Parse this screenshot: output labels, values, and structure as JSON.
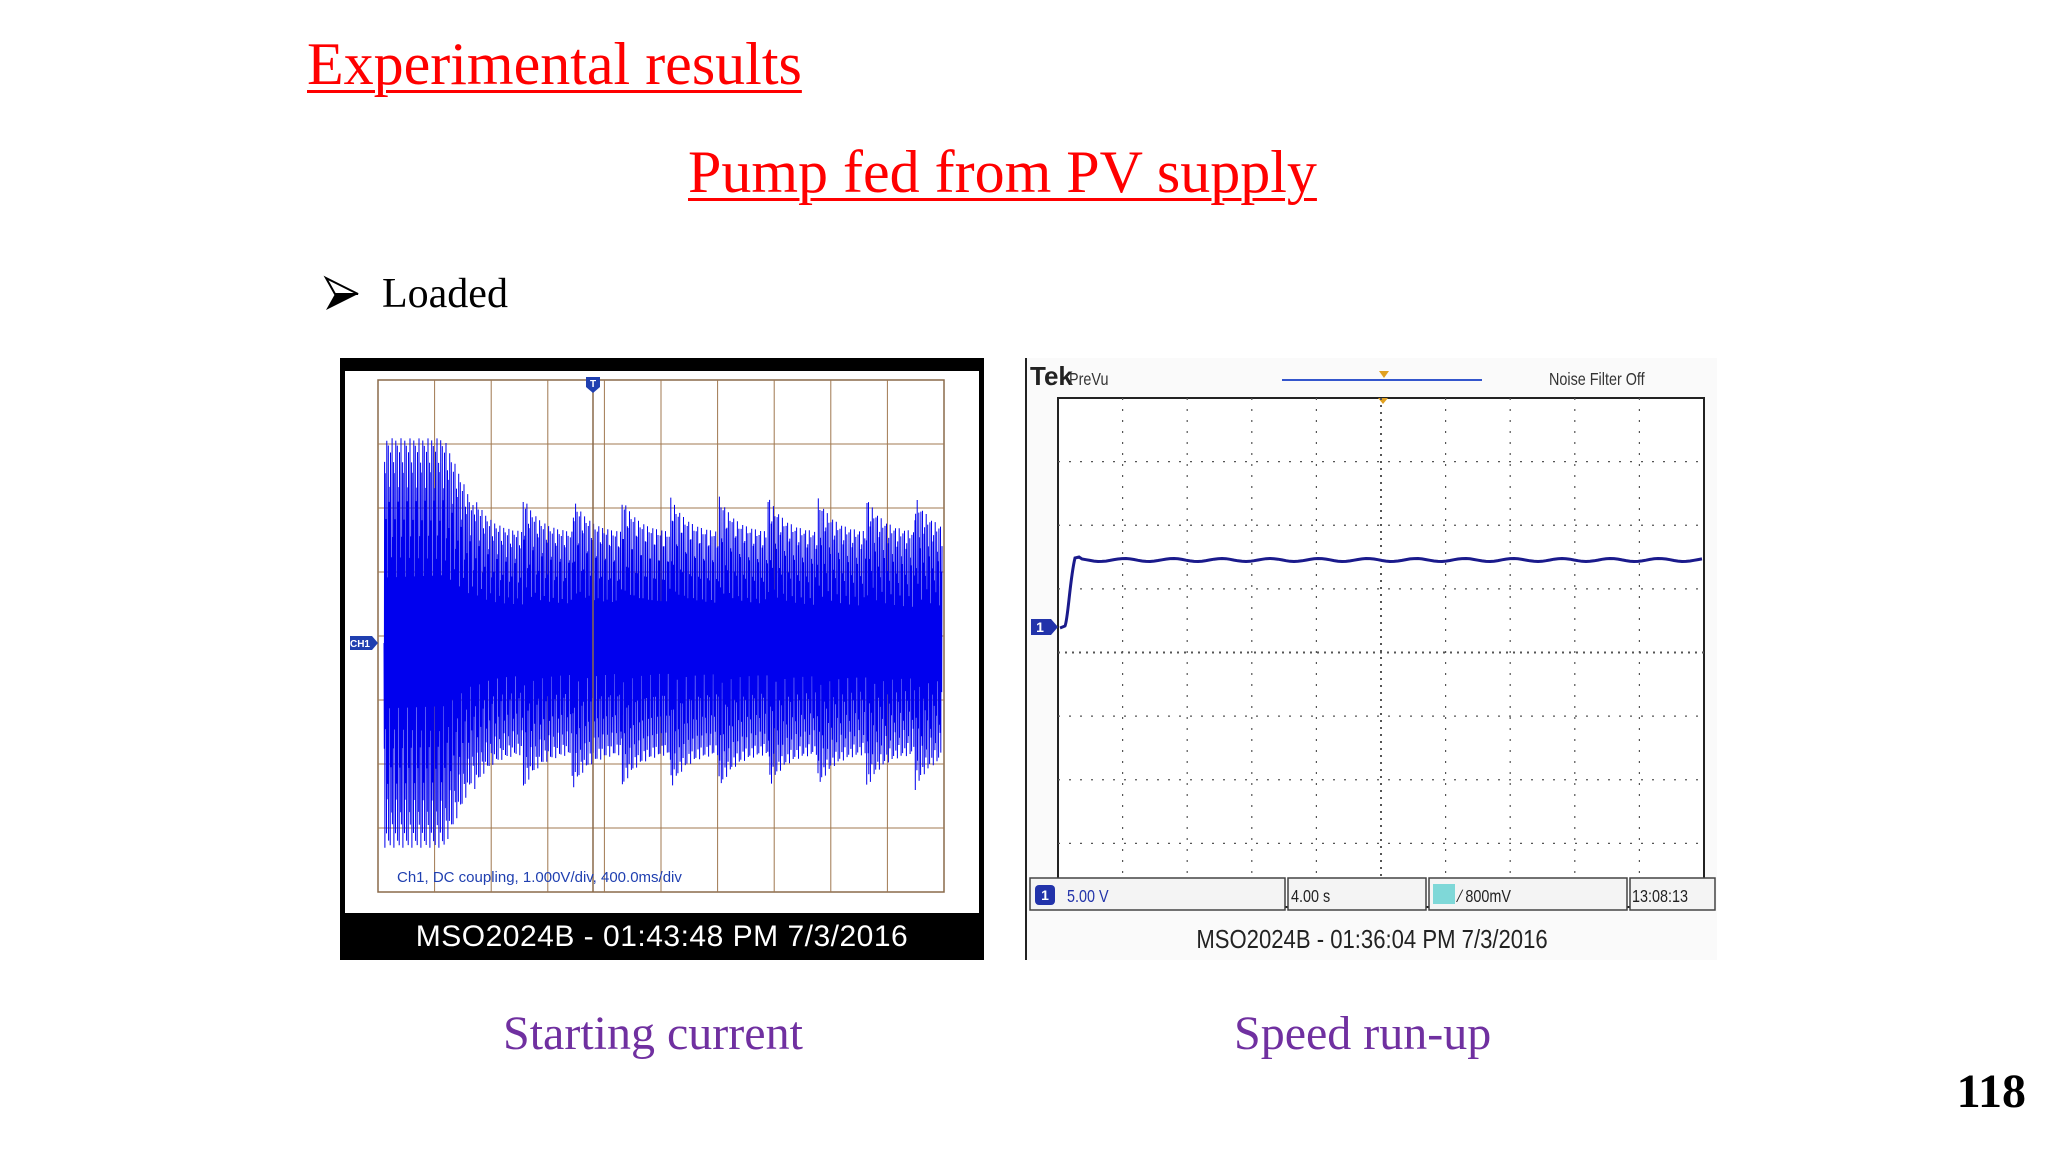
{
  "slide": {
    "title": "Experimental results",
    "subtitle": "Pump fed from PV supply",
    "bullet": "Loaded",
    "page_number": "118"
  },
  "colors": {
    "title": "#ff0000",
    "caption": "#7030a0",
    "trace_left": "#0000ee",
    "trace_right": "#1a1a8c"
  },
  "scope_left": {
    "channel_marker": "CH1",
    "trigger_marker": "T",
    "settings": "Ch1, DC coupling, 1.000V/div, 400.0ms/div",
    "footer": "MSO2024B - 01:43:48 PM   7/3/2016",
    "caption": "Starting current"
  },
  "scope_right": {
    "brand": "Tek",
    "mode": "PreVu",
    "noise_filter": "Noise Filter Off",
    "channel_marker": "1",
    "status": {
      "channel": "1",
      "volts_div": "5.00 V",
      "time_div": "4.00 s",
      "trigger_level": "∕ 800mV",
      "time": "13:08:13"
    },
    "footer": "MSO2024B - 01:36:04 PM   7/3/2016",
    "caption": "Speed run-up"
  }
}
